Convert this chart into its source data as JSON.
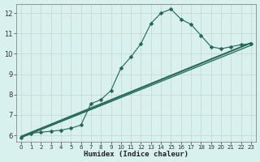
{
  "xlabel": "Humidex (Indice chaleur)",
  "bg_color": "#d8f0ee",
  "grid_color": "#c8d8d4",
  "line_color": "#226655",
  "xmin": -0.5,
  "xmax": 23.5,
  "ymin": 5.7,
  "ymax": 12.45,
  "yticks": [
    6,
    7,
    8,
    9,
    10,
    11,
    12
  ],
  "xticks": [
    0,
    1,
    2,
    3,
    4,
    5,
    6,
    7,
    8,
    9,
    10,
    11,
    12,
    13,
    14,
    15,
    16,
    17,
    18,
    19,
    20,
    21,
    22,
    23
  ],
  "line1_x": [
    0,
    1,
    2,
    3,
    4,
    5,
    6,
    7,
    8,
    9,
    10,
    11,
    12,
    13,
    14,
    15,
    16,
    17,
    18,
    19,
    20,
    21,
    22,
    23
  ],
  "line1_y": [
    5.9,
    6.1,
    6.15,
    6.2,
    6.25,
    6.35,
    6.5,
    7.55,
    7.75,
    8.2,
    9.3,
    9.85,
    10.5,
    11.5,
    12.0,
    12.2,
    11.7,
    11.45,
    10.9,
    10.35,
    10.25,
    10.35,
    10.45,
    10.5
  ],
  "line2_x": [
    0,
    23
  ],
  "line2_y": [
    5.88,
    10.42
  ],
  "line3_x": [
    0,
    23
  ],
  "line3_y": [
    5.95,
    10.55
  ],
  "line4_x": [
    0,
    23
  ],
  "line4_y": [
    5.9,
    10.52
  ],
  "marker": "D",
  "marker_size": 2.5
}
